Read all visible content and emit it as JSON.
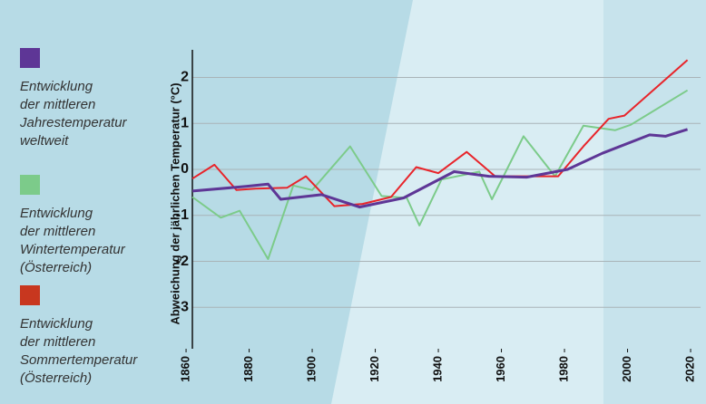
{
  "chart_data": {
    "type": "line",
    "ylabel": "Abweichung der jährlichen Temperatur (°C)",
    "xlim": [
      1862,
      2022
    ],
    "xticks": [
      1860,
      1880,
      1900,
      1920,
      1940,
      1960,
      1980,
      2000,
      2020
    ],
    "ylim": [
      -3.9,
      2.6
    ],
    "yticks": [
      2,
      1,
      0,
      -1,
      -2,
      -3
    ],
    "grid": true,
    "series": [
      {
        "name": "Entwicklung\nder mittleren\nJahrestemperatur\nweltweit",
        "color": "#5e3696",
        "x": [
          1862,
          1879,
          1886,
          1890,
          1903,
          1915,
          1929,
          1945,
          1956,
          1968,
          1981,
          1992,
          2007,
          2012,
          2019
        ],
        "values": [
          -0.47,
          -0.37,
          -0.32,
          -0.65,
          -0.55,
          -0.82,
          -0.62,
          -0.05,
          -0.15,
          -0.17,
          0.0,
          0.35,
          0.75,
          0.72,
          0.87
        ]
      },
      {
        "name": "Entwicklung\nder mittleren\nWintertemperatur\n(Österreich)",
        "color": "#7ccb8a",
        "x": [
          1862,
          1871,
          1877,
          1886,
          1894,
          1900,
          1912,
          1922,
          1930,
          1934,
          1941,
          1948,
          1953,
          1957,
          1967,
          1977,
          1986,
          1996,
          2001,
          2019
        ],
        "values": [
          -0.6,
          -1.05,
          -0.9,
          -1.95,
          -0.35,
          -0.45,
          0.5,
          -0.58,
          -0.62,
          -1.22,
          -0.22,
          -0.12,
          -0.05,
          -0.65,
          0.72,
          -0.15,
          0.95,
          0.85,
          0.97,
          1.72
        ]
      },
      {
        "name": "Entwicklung\nder mittleren\nSommertemperatur\n(Österreich)",
        "color": "#e8242a",
        "legend_color": "#c8371f",
        "x": [
          1862,
          1869,
          1876,
          1882,
          1892,
          1898,
          1907,
          1916,
          1925,
          1933,
          1940,
          1949,
          1958,
          1968,
          1978,
          1986,
          1994,
          1999,
          2019
        ],
        "values": [
          -0.2,
          0.1,
          -0.45,
          -0.42,
          -0.4,
          -0.15,
          -0.8,
          -0.75,
          -0.6,
          0.05,
          -0.08,
          0.38,
          -0.15,
          -0.15,
          -0.15,
          0.5,
          1.1,
          1.17,
          2.38
        ]
      }
    ]
  }
}
